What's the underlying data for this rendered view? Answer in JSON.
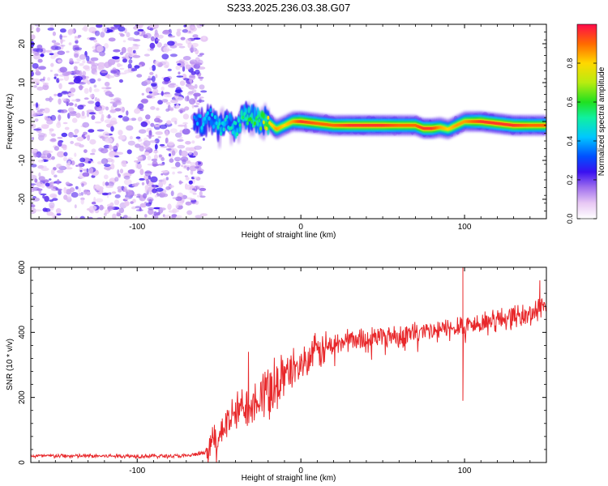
{
  "figure_title": "S233.2025.236.03.38.G07",
  "colors": {
    "snr_line": "#e8282b",
    "axis": "#000000",
    "background": "#ffffff",
    "colormap": [
      "#ffffff",
      "#f0d9f8",
      "#b9a1ee",
      "#6e3ce8",
      "#1a1aff",
      "#0b8dff",
      "#10f0e8",
      "#19e02a",
      "#c8ec14",
      "#ffd800",
      "#ff7a00",
      "#ff1038"
    ]
  },
  "chart_data": [
    {
      "type": "heatmap",
      "title": "S233.2025.236.03.38.G07",
      "xlabel": "Height of straight line (km)",
      "ylabel": "Frequency (Hz)",
      "xlim": [
        -165,
        150
      ],
      "ylim": [
        -25,
        25
      ],
      "xticks": [
        -100,
        0,
        100
      ],
      "yticks": [
        -20,
        -10,
        0,
        10,
        20
      ],
      "xtick_labels": [
        "-100",
        "0",
        "100"
      ],
      "ytick_labels": [
        "-20",
        "-10",
        "0",
        "10",
        "20"
      ],
      "colorbar": {
        "label": "Normalized spectral amplitude",
        "range": [
          0,
          1
        ],
        "ticks": [
          0.0,
          0.2,
          0.4,
          0.6,
          0.8
        ],
        "tick_labels": [
          "0.0",
          "0.2",
          "0.4",
          "0.6",
          "0.8"
        ]
      },
      "noise_region_x": [
        -165,
        -62
      ],
      "signal_ridge": {
        "x": [
          -65,
          -60,
          -55,
          -50,
          -45,
          -40,
          -35,
          -30,
          -25,
          -20,
          -15,
          -10,
          -5,
          0,
          10,
          20,
          30,
          40,
          50,
          60,
          70,
          75,
          80,
          85,
          90,
          95,
          100,
          110,
          120,
          130,
          140,
          150
        ],
        "frequency": [
          0.0,
          -0.5,
          1.0,
          -2.0,
          0.5,
          -2.5,
          1.5,
          1.0,
          0.0,
          0.0,
          -2.0,
          -1.0,
          0.0,
          0.0,
          -0.5,
          -1.0,
          -1.0,
          -1.0,
          -1.0,
          -1.0,
          -1.0,
          -1.8,
          -1.8,
          -1.5,
          -2.0,
          -1.0,
          0.0,
          0.0,
          -0.5,
          -1.0,
          -1.0,
          -1.0
        ],
        "amplitude": [
          0.35,
          0.45,
          0.4,
          0.5,
          0.45,
          0.5,
          0.55,
          0.55,
          0.6,
          0.75,
          0.85,
          0.8,
          0.85,
          0.95,
          0.9,
          0.9,
          0.95,
          0.95,
          0.95,
          0.9,
          0.9,
          0.95,
          0.95,
          0.85,
          0.8,
          0.85,
          0.85,
          0.95,
          0.95,
          0.95,
          0.9,
          0.9
        ]
      }
    },
    {
      "type": "line",
      "title": "",
      "xlabel": "Height of straight line (km)",
      "ylabel": "SNR (10 * v/v)",
      "xlim": [
        -165,
        150
      ],
      "ylim": [
        0,
        600
      ],
      "xticks": [
        -100,
        0,
        100
      ],
      "yticks": [
        0,
        200,
        400,
        600
      ],
      "xtick_labels": [
        "-100",
        "0",
        "100"
      ],
      "ytick_labels": [
        "0",
        "200",
        "400",
        "600"
      ],
      "series": [
        {
          "name": "SNR",
          "x": [
            -165,
            -150,
            -130,
            -110,
            -90,
            -70,
            -58,
            -52,
            -45,
            -40,
            -35,
            -30,
            -25,
            -20,
            -15,
            -10,
            -5,
            0,
            5,
            10,
            15,
            20,
            25,
            30,
            40,
            50,
            60,
            70,
            80,
            90,
            95,
            98,
            100,
            102,
            105,
            110,
            120,
            130,
            140,
            145,
            150
          ],
          "y": [
            20,
            20,
            20,
            20,
            20,
            20,
            30,
            80,
            120,
            150,
            170,
            190,
            210,
            230,
            250,
            270,
            290,
            300,
            320,
            340,
            350,
            360,
            370,
            380,
            380,
            390,
            390,
            400,
            400,
            410,
            420,
            430,
            400,
            430,
            420,
            430,
            440,
            450,
            450,
            480,
            490
          ],
          "spikes": [
            {
              "x": -32,
              "y": 340
            },
            {
              "x": 99,
              "y": 610
            },
            {
              "x": 99,
              "y": 190
            },
            {
              "x": 146,
              "y": 560
            }
          ]
        }
      ]
    }
  ]
}
